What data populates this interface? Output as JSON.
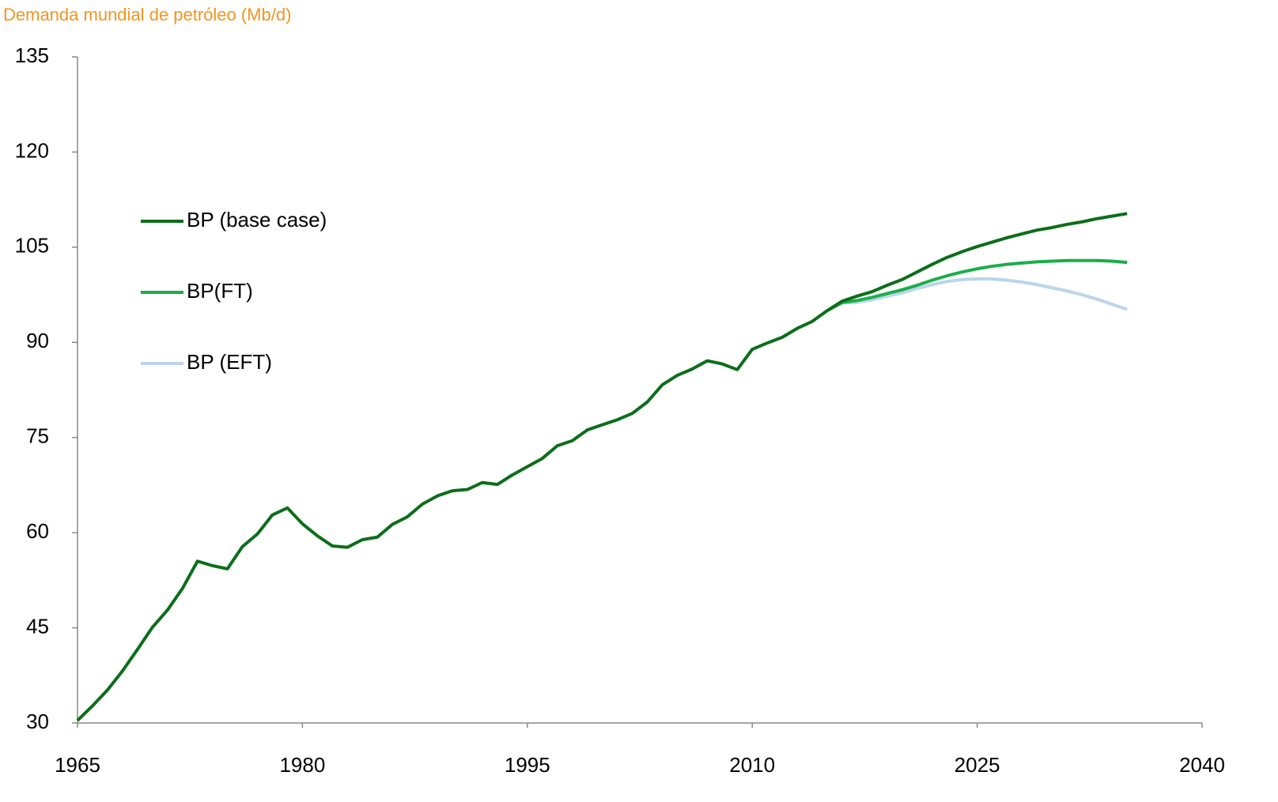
{
  "chart_data": {
    "type": "line",
    "title": "Demanda mundial de petróleo (Mb/d)",
    "x": [
      1965,
      1966,
      1967,
      1968,
      1969,
      1970,
      1971,
      1972,
      1973,
      1974,
      1975,
      1976,
      1977,
      1978,
      1979,
      1980,
      1981,
      1982,
      1983,
      1984,
      1985,
      1986,
      1987,
      1988,
      1989,
      1990,
      1991,
      1992,
      1993,
      1994,
      1995,
      1996,
      1997,
      1998,
      1999,
      2000,
      2001,
      2002,
      2003,
      2004,
      2005,
      2006,
      2007,
      2008,
      2009,
      2010,
      2011,
      2012,
      2013,
      2014,
      2015,
      2016,
      2017,
      2018,
      2019,
      2020,
      2021,
      2022,
      2023,
      2024,
      2025,
      2026,
      2027,
      2028,
      2029,
      2030,
      2031,
      2032,
      2033,
      2034,
      2035
    ],
    "series": [
      {
        "name": "BP (base case)",
        "color": "#0b6e1a",
        "values": [
          30.4,
          32.7,
          35.2,
          38.2,
          41.6,
          45.1,
          47.8,
          51.2,
          55.5,
          54.8,
          54.3,
          57.8,
          59.8,
          62.8,
          63.9,
          61.4,
          59.5,
          57.9,
          57.7,
          58.9,
          59.3,
          61.3,
          62.5,
          64.5,
          65.8,
          66.6,
          66.8,
          67.9,
          67.6,
          69.1,
          70.4,
          71.7,
          73.7,
          74.5,
          76.2,
          77.0,
          77.8,
          78.8,
          80.6,
          83.3,
          84.8,
          85.8,
          87.1,
          86.6,
          85.7,
          88.9,
          89.9,
          90.8,
          92.2,
          93.3,
          95.0,
          96.5,
          97.3,
          98.0,
          99.0,
          99.9,
          101.1,
          102.3,
          103.4,
          104.3,
          105.1,
          105.8,
          106.5,
          107.1,
          107.7,
          108.1,
          108.6,
          109.0,
          109.5,
          109.9,
          110.3
        ]
      },
      {
        "name": "BP(FT)",
        "color": "#1aae4a",
        "values": [
          null,
          null,
          null,
          null,
          null,
          null,
          null,
          null,
          null,
          null,
          null,
          null,
          null,
          null,
          null,
          null,
          null,
          null,
          null,
          null,
          null,
          null,
          null,
          null,
          null,
          null,
          null,
          null,
          null,
          null,
          null,
          null,
          null,
          null,
          null,
          null,
          null,
          null,
          null,
          null,
          null,
          null,
          null,
          null,
          null,
          null,
          null,
          null,
          null,
          null,
          95.0,
          96.3,
          96.6,
          97.1,
          97.7,
          98.3,
          99.0,
          99.8,
          100.5,
          101.1,
          101.6,
          102.0,
          102.3,
          102.5,
          102.7,
          102.8,
          102.9,
          102.9,
          102.9,
          102.8,
          102.6
        ]
      },
      {
        "name": "BP (EFT)",
        "color": "#bcd4ec",
        "values": [
          null,
          null,
          null,
          null,
          null,
          null,
          null,
          null,
          null,
          null,
          null,
          null,
          null,
          null,
          null,
          null,
          null,
          null,
          null,
          null,
          null,
          null,
          null,
          null,
          null,
          null,
          null,
          null,
          null,
          null,
          null,
          null,
          null,
          null,
          null,
          null,
          null,
          null,
          null,
          null,
          null,
          null,
          null,
          null,
          null,
          null,
          null,
          null,
          null,
          null,
          95.0,
          96.2,
          96.3,
          96.7,
          97.3,
          97.8,
          98.5,
          99.1,
          99.6,
          99.9,
          100.0,
          100.0,
          99.8,
          99.5,
          99.1,
          98.6,
          98.1,
          97.5,
          96.8,
          96.0,
          95.2
        ]
      }
    ],
    "xlim": [
      1965,
      2040
    ],
    "xticks": [
      1965,
      1980,
      1995,
      2010,
      2025,
      2040
    ],
    "ylim": [
      30,
      135
    ],
    "yticks": [
      30,
      45,
      60,
      75,
      90,
      105,
      120,
      135
    ],
    "grid": false,
    "legend": "left"
  }
}
